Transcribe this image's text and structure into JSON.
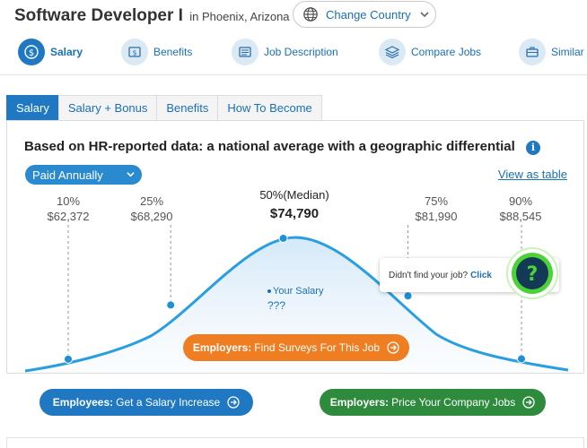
{
  "header": {
    "job_title": "Software Developer I",
    "location": "in Phoenix, Arizona",
    "change_country_label": "Change Country"
  },
  "nav": {
    "items": [
      {
        "label": "Salary",
        "icon": "dollar-circle-icon",
        "active": true
      },
      {
        "label": "Benefits",
        "icon": "dollar-bill-icon",
        "active": false
      },
      {
        "label": "Job Description",
        "icon": "list-icon",
        "active": false
      },
      {
        "label": "Compare Jobs",
        "icon": "stack-icon",
        "active": false
      },
      {
        "label": "Similar",
        "icon": "briefcase-icon",
        "active": false
      }
    ]
  },
  "tabs": [
    {
      "label": "Salary",
      "active": true
    },
    {
      "label": "Salary + Bonus",
      "active": false
    },
    {
      "label": "Benefits",
      "active": false
    },
    {
      "label": "How To Become",
      "active": false
    }
  ],
  "panel": {
    "heading": "Based on HR-reported data: a national average with a geographic differential",
    "pay_period": "Paid Annually",
    "view_as_table": "View as table",
    "help_text": "Didn't find your job?",
    "help_link": "Click",
    "your_salary_label": "Your Salary",
    "your_salary_value": "???",
    "employers_surveys_button": {
      "bold": "Employers:",
      "text": "Find Surveys For This Job"
    }
  },
  "chart_data": {
    "type": "area",
    "percentiles": [
      {
        "label": "10%",
        "value": "$62,372",
        "amount": 62372
      },
      {
        "label": "25%",
        "value": "$68,290",
        "amount": 68290
      },
      {
        "label": "50%(Median)",
        "value": "$74,790",
        "amount": 74790
      },
      {
        "label": "75%",
        "value": "$81,990",
        "amount": 81990
      },
      {
        "label": "90%",
        "value": "$88,545",
        "amount": 88545
      }
    ]
  },
  "bottom_buttons": {
    "employees": {
      "bold": "Employees:",
      "text": "Get a Salary Increase"
    },
    "employers": {
      "bold": "Employers:",
      "text": "Price Your Company Jobs"
    }
  },
  "colors": {
    "brand_blue": "#1f78c1",
    "orange": "#ef7d22",
    "green": "#2e8b3d",
    "help_green": "#4cd137"
  }
}
